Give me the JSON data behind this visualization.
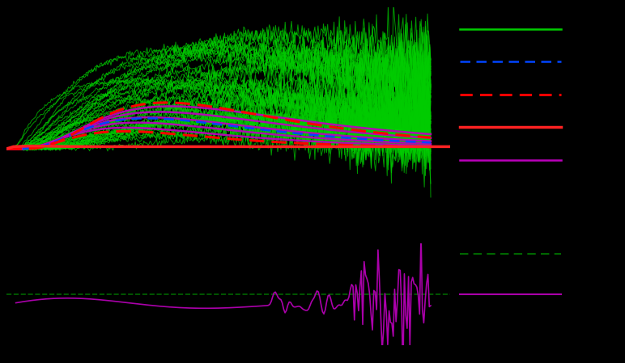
{
  "background_color": "#000000",
  "upper_plot": {
    "replica_color": "#00cc00",
    "replica_lw": 0.7,
    "blue_dashed_color": "#0044ff",
    "red_dashed_color": "#ff0000",
    "red_solid_color": "#ff2222",
    "purple_color": "#bb00bb",
    "magenta_color": "#ff44ff",
    "blue_lw": 1.8,
    "red_dashed_lw": 2.2,
    "red_solid_lw": 2.5,
    "purple_lw": 1.8,
    "magenta_lw": 2.5,
    "n_replicas": 50
  },
  "lower_plot": {
    "green_dashed_color": "#006600",
    "purple_color": "#aa00aa",
    "green_lw": 1.2,
    "purple_lw": 1.2
  },
  "legend_items": [
    {
      "color": "#00cc00",
      "style": "solid",
      "lw": 1.8
    },
    {
      "color": "#0044ff",
      "style": "dashed",
      "lw": 1.8
    },
    {
      "color": "#ff0000",
      "style": "dashed",
      "lw": 2.2
    },
    {
      "color": "#ff2222",
      "style": "solid",
      "lw": 2.5
    },
    {
      "color": "#bb00bb",
      "style": "solid",
      "lw": 1.8
    }
  ],
  "legend2_items": [
    {
      "color": "#006600",
      "style": "dashed",
      "lw": 1.5
    },
    {
      "color": "#aa00aa",
      "style": "solid",
      "lw": 1.5
    }
  ]
}
